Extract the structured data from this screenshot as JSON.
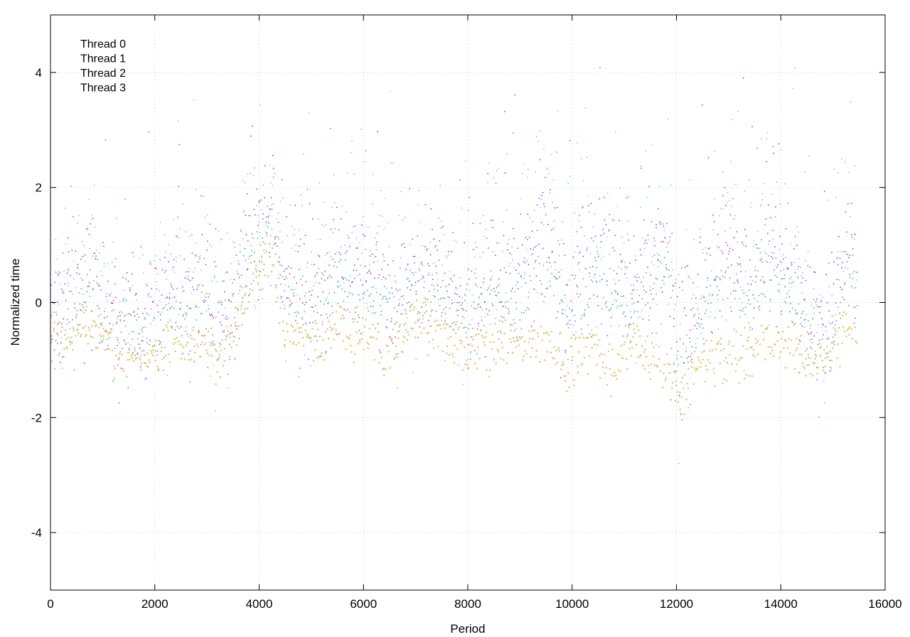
{
  "chart_data": {
    "type": "scatter",
    "title": "",
    "xlabel": "Period",
    "ylabel": "Normalized time",
    "xlim": [
      0,
      16000
    ],
    "ylim": [
      -5,
      5
    ],
    "xticks": [
      0,
      2000,
      4000,
      6000,
      8000,
      10000,
      12000,
      14000,
      16000
    ],
    "yticks": [
      -4,
      -2,
      0,
      2,
      4
    ],
    "grid": true,
    "legend_position": "top-left",
    "x_extent": [
      0,
      15450
    ],
    "series": [
      {
        "name": "Thread 0",
        "color": "#9400d3",
        "baseline": [
          [
            0,
            -0.2
          ],
          [
            500,
            0.2
          ],
          [
            800,
            0.4
          ],
          [
            1000,
            0.0
          ],
          [
            1300,
            -0.4
          ],
          [
            1700,
            -0.1
          ],
          [
            2100,
            -0.3
          ],
          [
            2300,
            0.4
          ],
          [
            2600,
            0.2
          ],
          [
            2900,
            0.6
          ],
          [
            3200,
            -0.4
          ],
          [
            3500,
            0.1
          ],
          [
            3800,
            1.2
          ],
          [
            4200,
            1.7
          ],
          [
            4500,
            0.6
          ],
          [
            5000,
            0.3
          ],
          [
            5500,
            0.8
          ],
          [
            6000,
            0.6
          ],
          [
            6500,
            0.2
          ],
          [
            7000,
            0.6
          ],
          [
            7500,
            0.3
          ],
          [
            8000,
            0.1
          ],
          [
            8500,
            0.5
          ],
          [
            9000,
            0.6
          ],
          [
            9500,
            1.4
          ],
          [
            9900,
            0.1
          ],
          [
            10300,
            0.8
          ],
          [
            10700,
            0.5
          ],
          [
            11200,
            0.4
          ],
          [
            11800,
            1.2
          ],
          [
            12050,
            -1.0
          ],
          [
            12500,
            0.3
          ],
          [
            13000,
            1.2
          ],
          [
            13300,
            0.3
          ],
          [
            13700,
            1.1
          ],
          [
            14200,
            0.6
          ],
          [
            14800,
            -0.5
          ],
          [
            15300,
            1.1
          ],
          [
            15450,
            0.5
          ]
        ]
      },
      {
        "name": "Thread 1",
        "color": "#009e73",
        "baseline": [
          [
            0,
            -0.5
          ],
          [
            500,
            -0.2
          ],
          [
            800,
            0.0
          ],
          [
            1000,
            -0.4
          ],
          [
            1300,
            -0.8
          ],
          [
            1700,
            -0.5
          ],
          [
            2100,
            -0.7
          ],
          [
            2300,
            -0.1
          ],
          [
            2600,
            -0.3
          ],
          [
            2900,
            0.1
          ],
          [
            3200,
            -0.8
          ],
          [
            3500,
            -0.3
          ],
          [
            3800,
            0.6
          ],
          [
            4200,
            1.1
          ],
          [
            4500,
            0.1
          ],
          [
            5000,
            -0.2
          ],
          [
            5500,
            0.3
          ],
          [
            6000,
            0.1
          ],
          [
            6500,
            -0.3
          ],
          [
            7000,
            0.1
          ],
          [
            7500,
            -0.2
          ],
          [
            8000,
            -0.4
          ],
          [
            8500,
            0.0
          ],
          [
            9000,
            0.1
          ],
          [
            9500,
            0.8
          ],
          [
            9900,
            -0.4
          ],
          [
            10300,
            0.3
          ],
          [
            10700,
            0.0
          ],
          [
            11200,
            -0.1
          ],
          [
            11800,
            0.6
          ],
          [
            12050,
            -1.4
          ],
          [
            12500,
            -0.2
          ],
          [
            13000,
            0.6
          ],
          [
            13300,
            -0.2
          ],
          [
            13700,
            0.5
          ],
          [
            14200,
            0.1
          ],
          [
            14800,
            -1.0
          ],
          [
            15300,
            0.5
          ],
          [
            15450,
            0.0
          ]
        ]
      },
      {
        "name": "Thread 2",
        "color": "#56b4e9",
        "baseline": [
          [
            0,
            -0.1
          ],
          [
            500,
            0.3
          ],
          [
            800,
            0.5
          ],
          [
            1000,
            0.1
          ],
          [
            1300,
            -0.3
          ],
          [
            1700,
            0.0
          ],
          [
            2100,
            -0.2
          ],
          [
            2300,
            0.5
          ],
          [
            2600,
            0.3
          ],
          [
            2900,
            0.7
          ],
          [
            3200,
            -0.3
          ],
          [
            3500,
            0.3
          ],
          [
            3800,
            1.4
          ],
          [
            4200,
            2.0
          ],
          [
            4500,
            0.7
          ],
          [
            5000,
            0.4
          ],
          [
            5500,
            1.0
          ],
          [
            6000,
            0.7
          ],
          [
            6500,
            0.3
          ],
          [
            7000,
            0.7
          ],
          [
            7500,
            0.4
          ],
          [
            8000,
            0.2
          ],
          [
            8500,
            0.6
          ],
          [
            9000,
            0.8
          ],
          [
            9500,
            1.8
          ],
          [
            9900,
            0.2
          ],
          [
            10300,
            1.0
          ],
          [
            10700,
            0.6
          ],
          [
            11200,
            0.5
          ],
          [
            11800,
            1.4
          ],
          [
            12050,
            -0.9
          ],
          [
            12500,
            0.4
          ],
          [
            13000,
            1.6
          ],
          [
            13300,
            0.4
          ],
          [
            13700,
            1.4
          ],
          [
            14200,
            0.8
          ],
          [
            14800,
            -0.4
          ],
          [
            15300,
            1.4
          ],
          [
            15450,
            0.6
          ]
        ]
      },
      {
        "name": "Thread 3",
        "color": "#e6b450",
        "baseline": [
          [
            0,
            -0.6
          ],
          [
            500,
            -0.5
          ],
          [
            800,
            -0.4
          ],
          [
            1000,
            -0.6
          ],
          [
            1300,
            -0.9
          ],
          [
            1700,
            -0.8
          ],
          [
            2100,
            -0.9
          ],
          [
            2300,
            -0.6
          ],
          [
            2600,
            -0.8
          ],
          [
            2900,
            -0.6
          ],
          [
            3200,
            -1.0
          ],
          [
            3500,
            -0.4
          ],
          [
            3800,
            0.2
          ],
          [
            4200,
            1.0
          ],
          [
            4500,
            -0.6
          ],
          [
            5000,
            -0.7
          ],
          [
            5500,
            -0.5
          ],
          [
            6000,
            -0.6
          ],
          [
            6500,
            -0.9
          ],
          [
            7000,
            -0.2
          ],
          [
            7500,
            -0.6
          ],
          [
            8000,
            -0.8
          ],
          [
            8500,
            -0.7
          ],
          [
            9000,
            -0.5
          ],
          [
            9500,
            -0.7
          ],
          [
            9900,
            -1.2
          ],
          [
            10300,
            -0.7
          ],
          [
            10700,
            -1.3
          ],
          [
            11200,
            -0.6
          ],
          [
            11800,
            -1.2
          ],
          [
            12050,
            -1.6
          ],
          [
            12500,
            -1.0
          ],
          [
            13000,
            -0.8
          ],
          [
            13300,
            -1.0
          ],
          [
            13700,
            -0.4
          ],
          [
            14200,
            -0.8
          ],
          [
            14800,
            -1.1
          ],
          [
            15300,
            -0.3
          ],
          [
            15450,
            -0.9
          ]
        ]
      }
    ]
  }
}
